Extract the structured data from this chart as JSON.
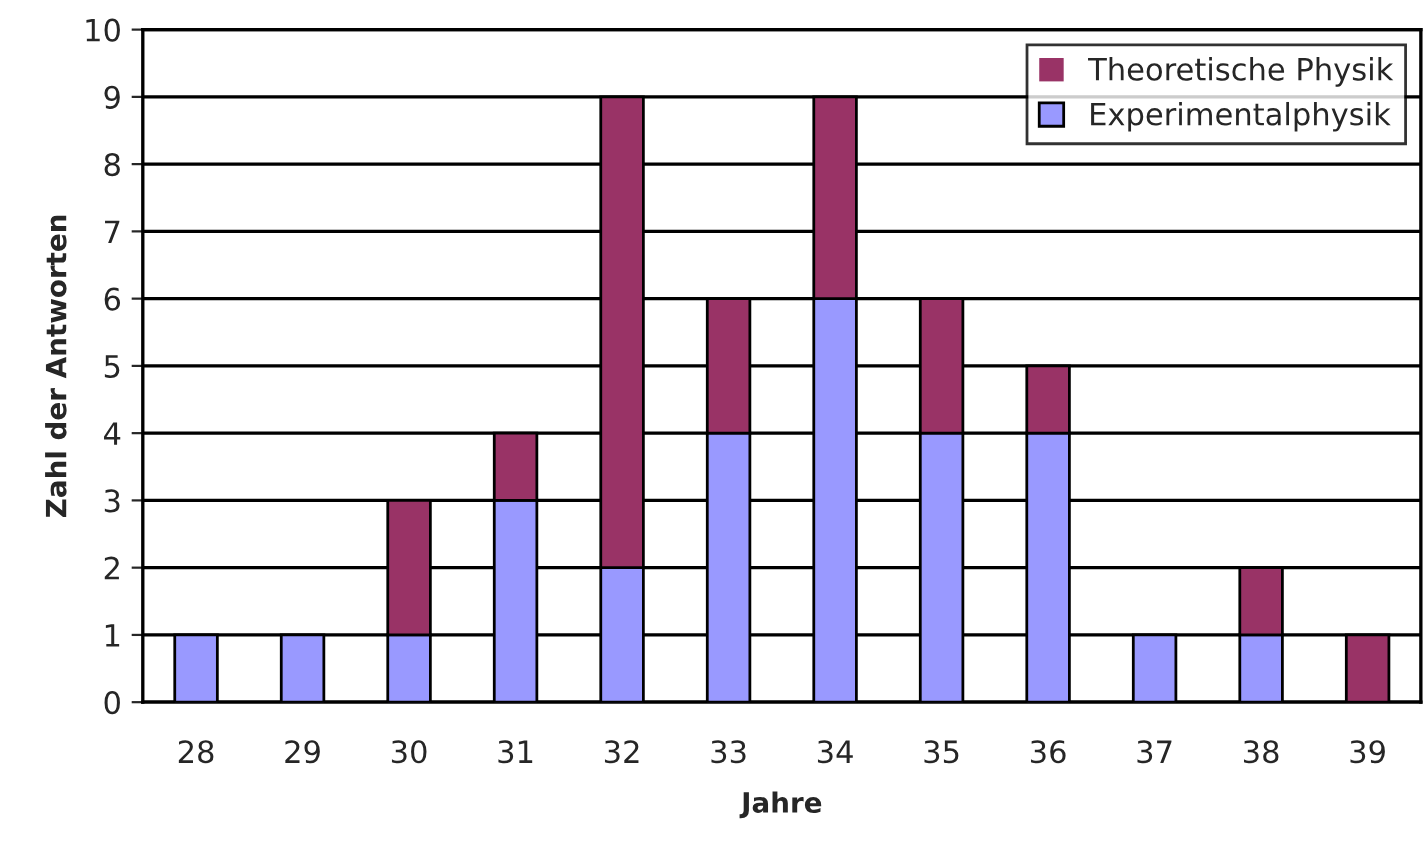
{
  "chart_data": {
    "type": "bar",
    "stacked": true,
    "xlabel": "Jahre",
    "ylabel": "Zahl der Antworten",
    "categories": [
      "28",
      "29",
      "30",
      "31",
      "32",
      "33",
      "34",
      "35",
      "36",
      "37",
      "38",
      "39"
    ],
    "series": [
      {
        "name": "Experimentalphysik",
        "color": "#9999ff",
        "values": [
          1,
          1,
          1,
          3,
          2,
          4,
          6,
          4,
          4,
          1,
          1,
          0
        ]
      },
      {
        "name": "Theoretische Physik",
        "color": "#993366",
        "values": [
          0,
          0,
          2,
          1,
          7,
          2,
          3,
          2,
          1,
          0,
          1,
          1
        ]
      }
    ],
    "ylim": [
      0,
      10
    ],
    "yticks": [
      0,
      1,
      2,
      3,
      4,
      5,
      6,
      7,
      8,
      9,
      10
    ],
    "grid": "y",
    "legend": "top right"
  }
}
